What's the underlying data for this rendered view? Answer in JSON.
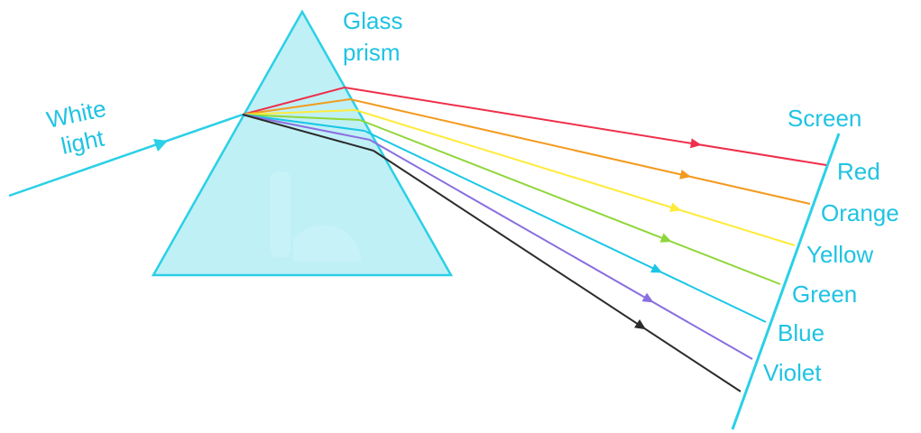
{
  "labels": {
    "glass_line1": "Glass",
    "glass_line2": "prism",
    "white_line1": "White",
    "white_line2": "light",
    "screen": "Screen"
  },
  "colors": {
    "prism_fill": "#bff0f6",
    "prism_stroke": "#2ad0e6",
    "label": "#1fc3e3",
    "incident_ray": "#2ad0e6",
    "screen": "#2ad0e6"
  },
  "spectrum": [
    {
      "name": "Red",
      "color": "#ef2f4a"
    },
    {
      "name": "Orange",
      "color": "#f39a1e"
    },
    {
      "name": "Yellow",
      "color": "#ffeb3a"
    },
    {
      "name": "Green",
      "color": "#8fd63a"
    },
    {
      "name": "Blue",
      "color": "#19c7e6"
    },
    {
      "name": "Violet",
      "color": "#8a6fe0"
    }
  ],
  "extra_ray_color": "#2b2b2b"
}
